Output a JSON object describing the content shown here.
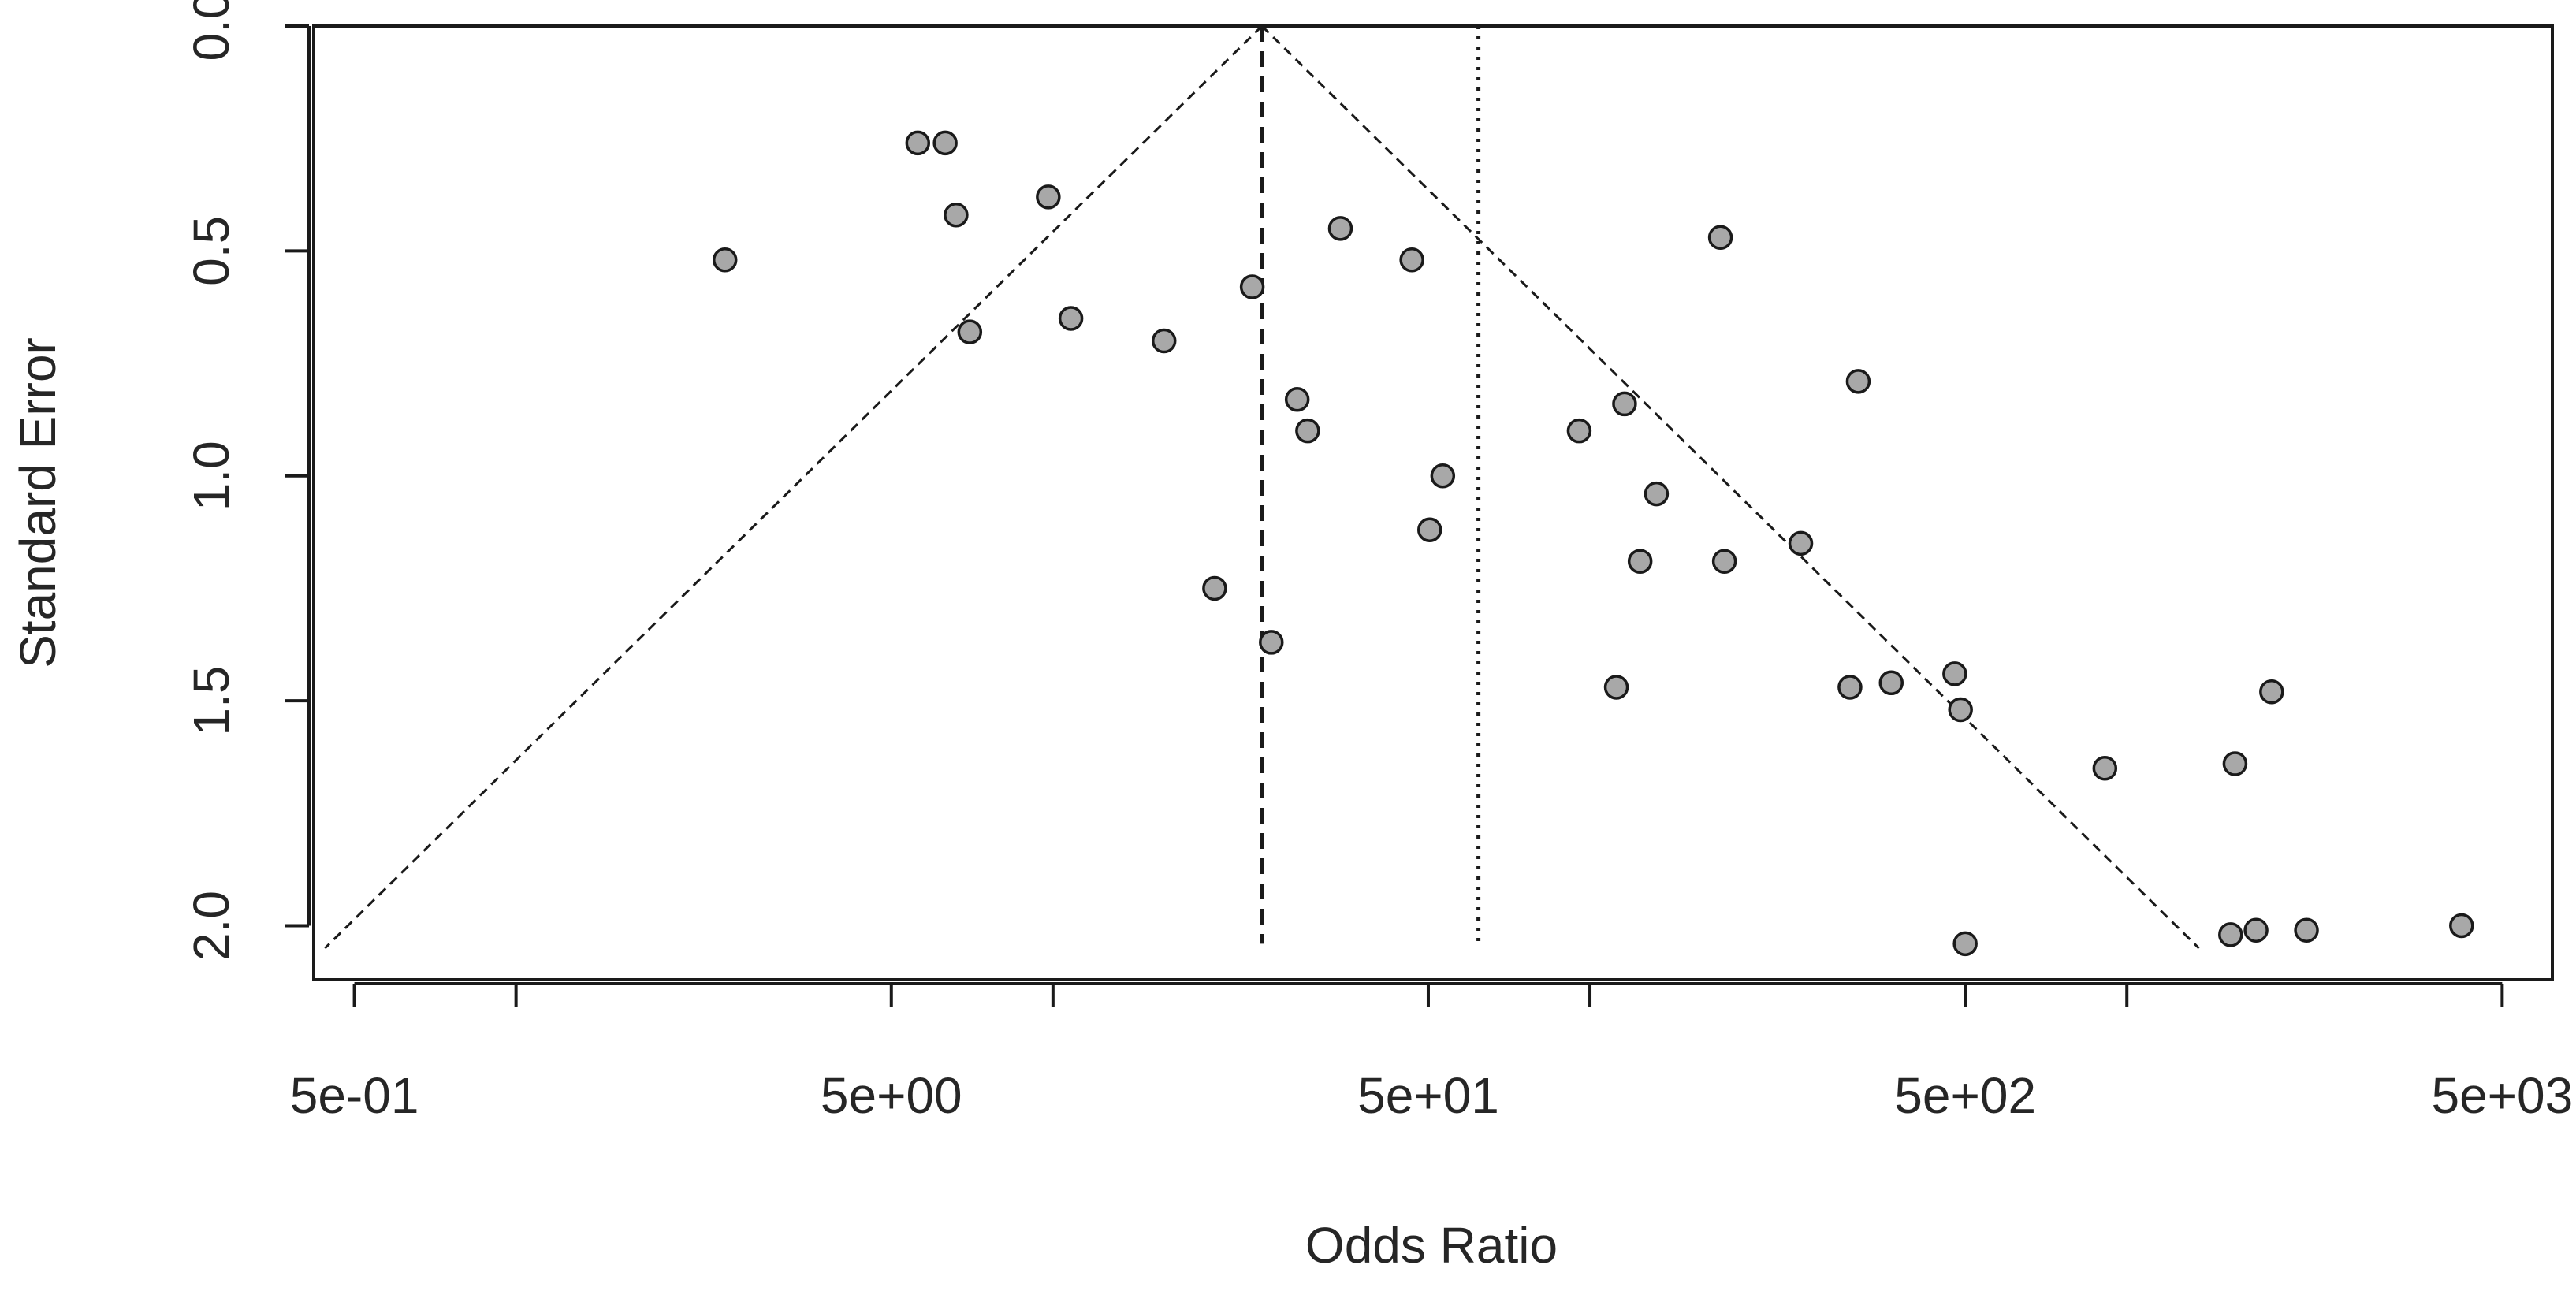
{
  "chart_data": {
    "type": "scatter",
    "title": "",
    "xlabel": "Odds Ratio",
    "ylabel": "Standard Error",
    "x_scale": "log",
    "y_reversed": true,
    "xlim": [
      0.42,
      6200
    ],
    "ylim": [
      0.0,
      2.12
    ],
    "x_ticks": [
      0.5,
      1,
      5,
      10,
      50,
      100,
      500,
      1000,
      5000
    ],
    "x_tick_labels": [
      "5e-01",
      "",
      "5e+00",
      "",
      "5e+01",
      "",
      "5e+02",
      "",
      "5e+03"
    ],
    "y_ticks": [
      0.0,
      0.5,
      1.0,
      1.5,
      2.0
    ],
    "y_tick_labels": [
      "0.0",
      "0.5",
      "1.0",
      "1.5",
      "2.0"
    ],
    "pooled_estimate_fixed": 24.5,
    "pooled_estimate_random": 62,
    "funnel_se_max": 2.05,
    "grid": false,
    "legend": "none",
    "point_fill": "#a8a8a8",
    "point_stroke": "#1a1a1a",
    "line_color": "#1a1a1a",
    "points": [
      {
        "x": 2.45,
        "y": 0.52
      },
      {
        "x": 5.6,
        "y": 0.26
      },
      {
        "x": 6.3,
        "y": 0.26
      },
      {
        "x": 6.6,
        "y": 0.42
      },
      {
        "x": 7.0,
        "y": 0.68
      },
      {
        "x": 9.8,
        "y": 0.38
      },
      {
        "x": 10.8,
        "y": 0.65
      },
      {
        "x": 16.1,
        "y": 0.7
      },
      {
        "x": 20.0,
        "y": 1.25
      },
      {
        "x": 23.5,
        "y": 0.58
      },
      {
        "x": 25.5,
        "y": 1.37
      },
      {
        "x": 28.5,
        "y": 0.83
      },
      {
        "x": 29.8,
        "y": 0.9
      },
      {
        "x": 34.3,
        "y": 0.45
      },
      {
        "x": 46.6,
        "y": 0.52
      },
      {
        "x": 50.3,
        "y": 1.12
      },
      {
        "x": 53.2,
        "y": 1.0
      },
      {
        "x": 95.5,
        "y": 0.9
      },
      {
        "x": 112,
        "y": 1.47
      },
      {
        "x": 116,
        "y": 0.84
      },
      {
        "x": 124,
        "y": 1.19
      },
      {
        "x": 133,
        "y": 1.04
      },
      {
        "x": 175,
        "y": 0.47
      },
      {
        "x": 178,
        "y": 1.19
      },
      {
        "x": 247,
        "y": 1.15
      },
      {
        "x": 305,
        "y": 1.47
      },
      {
        "x": 316,
        "y": 0.79
      },
      {
        "x": 364,
        "y": 1.46
      },
      {
        "x": 478,
        "y": 1.44
      },
      {
        "x": 490,
        "y": 1.52
      },
      {
        "x": 500,
        "y": 2.04
      },
      {
        "x": 910,
        "y": 1.65
      },
      {
        "x": 1590,
        "y": 1.64
      },
      {
        "x": 1560,
        "y": 2.02
      },
      {
        "x": 1740,
        "y": 2.01
      },
      {
        "x": 1860,
        "y": 1.48
      },
      {
        "x": 2160,
        "y": 2.01
      },
      {
        "x": 4200,
        "y": 2.0
      }
    ]
  }
}
